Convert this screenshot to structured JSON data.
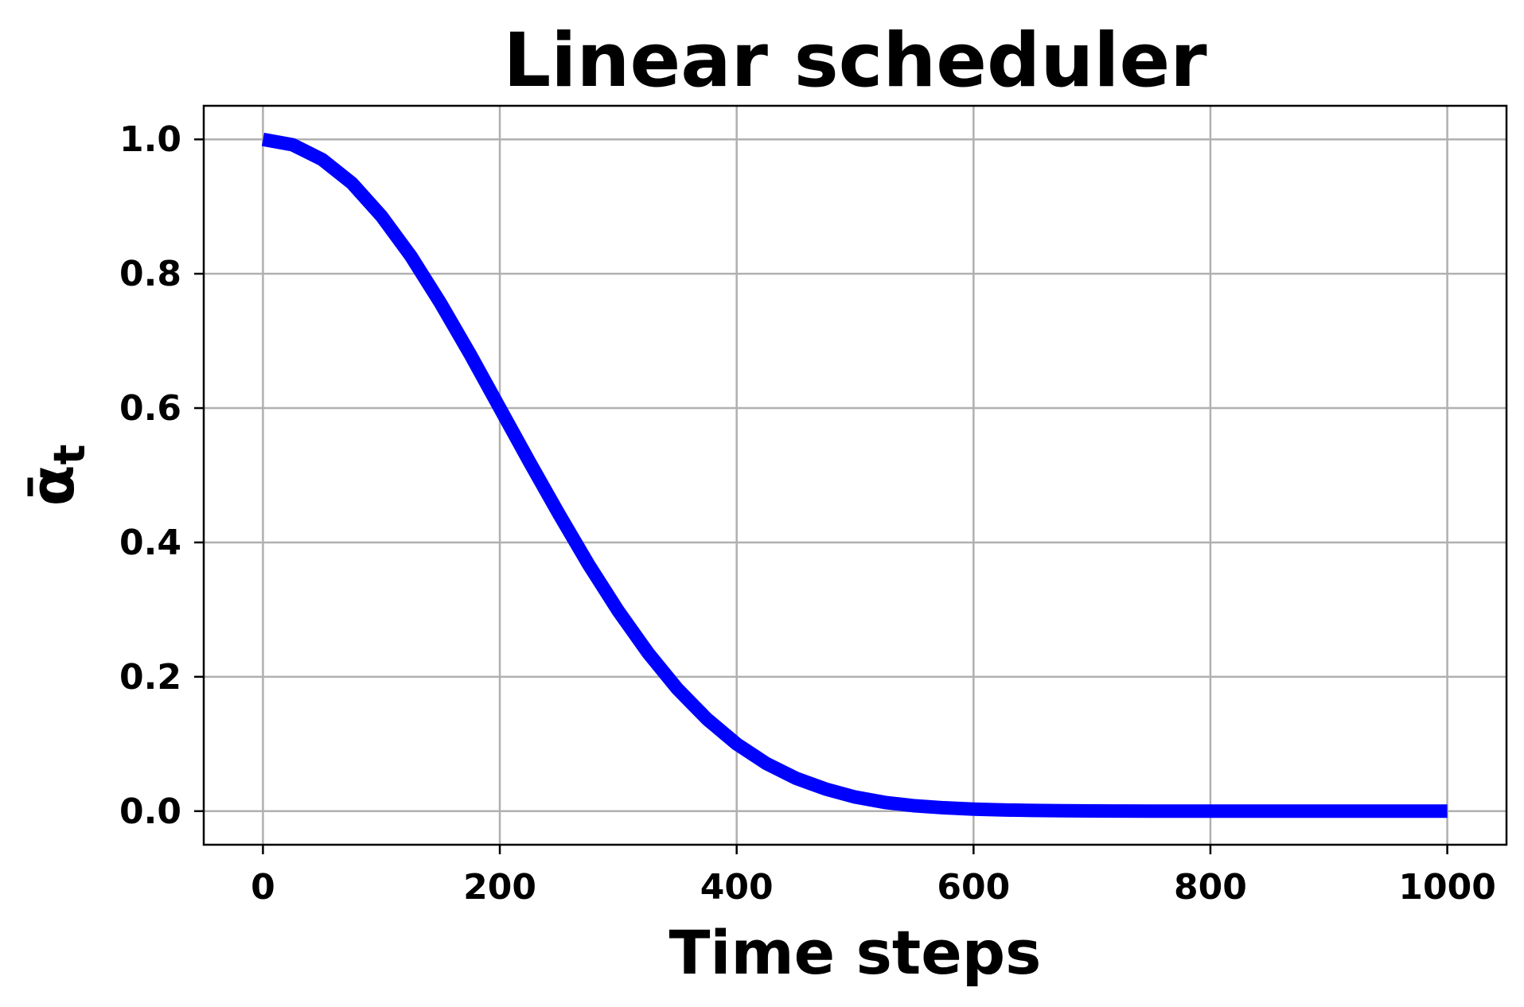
{
  "chart_data": {
    "type": "line",
    "title": "Linear scheduler",
    "xlabel": "Time steps",
    "ylabel": "ᾱt",
    "xlim": [
      -50,
      1050
    ],
    "ylim": [
      -0.05,
      1.05
    ],
    "xticks": [
      0,
      200,
      400,
      600,
      800,
      1000
    ],
    "xtick_labels": [
      "0",
      "200",
      "400",
      "600",
      "800",
      "1000"
    ],
    "yticks": [
      0.0,
      0.2,
      0.4,
      0.6,
      0.8,
      1.0
    ],
    "ytick_labels": [
      "0.0",
      "0.2",
      "0.4",
      "0.6",
      "0.8",
      "1.0"
    ],
    "grid": true,
    "series": [
      {
        "color": "#0000ff",
        "x": [
          0,
          25,
          50,
          75,
          100,
          125,
          150,
          175,
          200,
          225,
          250,
          275,
          300,
          325,
          350,
          375,
          400,
          425,
          450,
          475,
          500,
          525,
          550,
          575,
          600,
          625,
          650,
          675,
          700,
          725,
          750,
          775,
          800,
          825,
          850,
          875,
          900,
          925,
          950,
          975,
          1000
        ],
        "y": [
          1.0,
          0.992,
          0.97,
          0.935,
          0.886,
          0.826,
          0.756,
          0.68,
          0.6,
          0.52,
          0.442,
          0.367,
          0.298,
          0.236,
          0.182,
          0.137,
          0.1,
          0.071,
          0.049,
          0.033,
          0.021,
          0.013,
          0.008,
          0.005,
          0.003,
          0.0018,
          0.001,
          0.0006,
          0.0003,
          0.0002,
          0.0001,
          5e-05,
          3e-05,
          1e-05,
          0.0,
          0.0,
          0.0,
          0.0,
          0.0,
          0.0,
          0.0
        ]
      }
    ]
  }
}
